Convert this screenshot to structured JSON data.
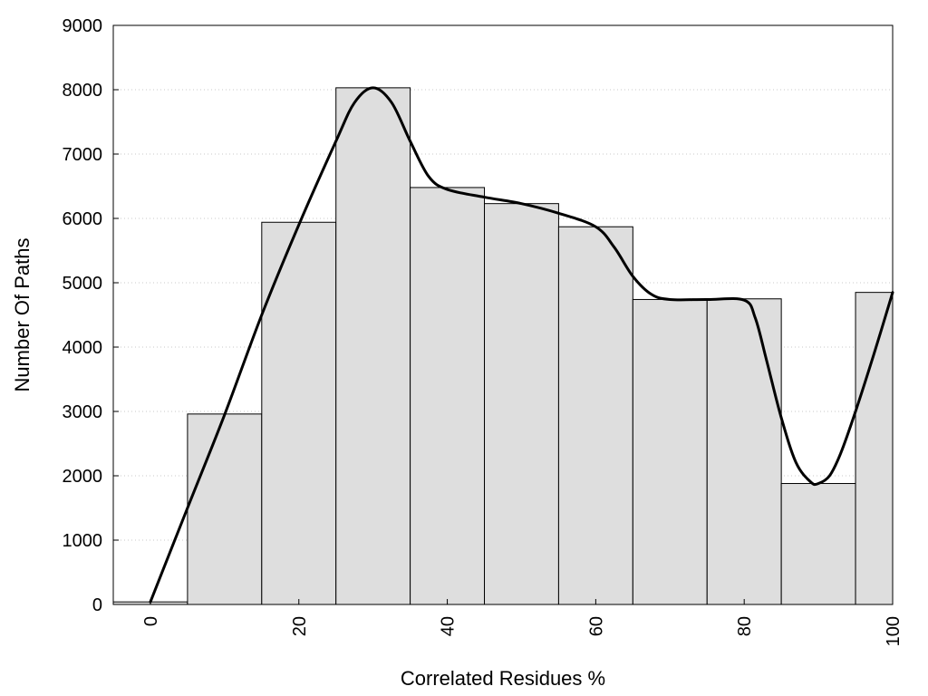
{
  "chart_data": {
    "type": "bar",
    "title": "",
    "xlabel": "Correlated Residues %",
    "ylabel": "Number Of Paths",
    "xlim": [
      -5,
      100
    ],
    "ylim": [
      0,
      9000
    ],
    "x_ticks": [
      0,
      20,
      40,
      60,
      80,
      100
    ],
    "y_ticks": [
      0,
      1000,
      2000,
      3000,
      4000,
      5000,
      6000,
      7000,
      8000,
      9000
    ],
    "grid": "horizontal dotted",
    "bin_width": 10,
    "bars": [
      {
        "x": 0,
        "value": 40
      },
      {
        "x": 10,
        "value": 2960
      },
      {
        "x": 20,
        "value": 5940
      },
      {
        "x": 30,
        "value": 8030
      },
      {
        "x": 40,
        "value": 6480
      },
      {
        "x": 50,
        "value": 6230
      },
      {
        "x": 60,
        "value": 5870
      },
      {
        "x": 70,
        "value": 4740
      },
      {
        "x": 80,
        "value": 4750
      },
      {
        "x": 90,
        "value": 1880
      },
      {
        "x": 100,
        "value": 4850
      }
    ],
    "curve": [
      {
        "x": 0,
        "y": 40
      },
      {
        "x": 5,
        "y": 1500
      },
      {
        "x": 10,
        "y": 2950
      },
      {
        "x": 15,
        "y": 4500
      },
      {
        "x": 20,
        "y": 5900
      },
      {
        "x": 25,
        "y": 7200
      },
      {
        "x": 27.5,
        "y": 7800
      },
      {
        "x": 30,
        "y": 8030
      },
      {
        "x": 32.5,
        "y": 7800
      },
      {
        "x": 35,
        "y": 7200
      },
      {
        "x": 37.5,
        "y": 6650
      },
      {
        "x": 40,
        "y": 6450
      },
      {
        "x": 45,
        "y": 6330
      },
      {
        "x": 50,
        "y": 6230
      },
      {
        "x": 55,
        "y": 6080
      },
      {
        "x": 60,
        "y": 5870
      },
      {
        "x": 62.5,
        "y": 5550
      },
      {
        "x": 65,
        "y": 5100
      },
      {
        "x": 67.5,
        "y": 4820
      },
      {
        "x": 70,
        "y": 4740
      },
      {
        "x": 75,
        "y": 4740
      },
      {
        "x": 80,
        "y": 4730
      },
      {
        "x": 81.5,
        "y": 4450
      },
      {
        "x": 83,
        "y": 3800
      },
      {
        "x": 85,
        "y": 2900
      },
      {
        "x": 87,
        "y": 2200
      },
      {
        "x": 89,
        "y": 1900
      },
      {
        "x": 90,
        "y": 1880
      },
      {
        "x": 91.5,
        "y": 2000
      },
      {
        "x": 93,
        "y": 2350
      },
      {
        "x": 95,
        "y": 3000
      },
      {
        "x": 97.5,
        "y": 3900
      },
      {
        "x": 100,
        "y": 4850
      }
    ],
    "colors": {
      "bar_fill": "#dedede",
      "bar_stroke": "#000000",
      "curve": "#000000",
      "grid": "#c8c8c8"
    }
  }
}
